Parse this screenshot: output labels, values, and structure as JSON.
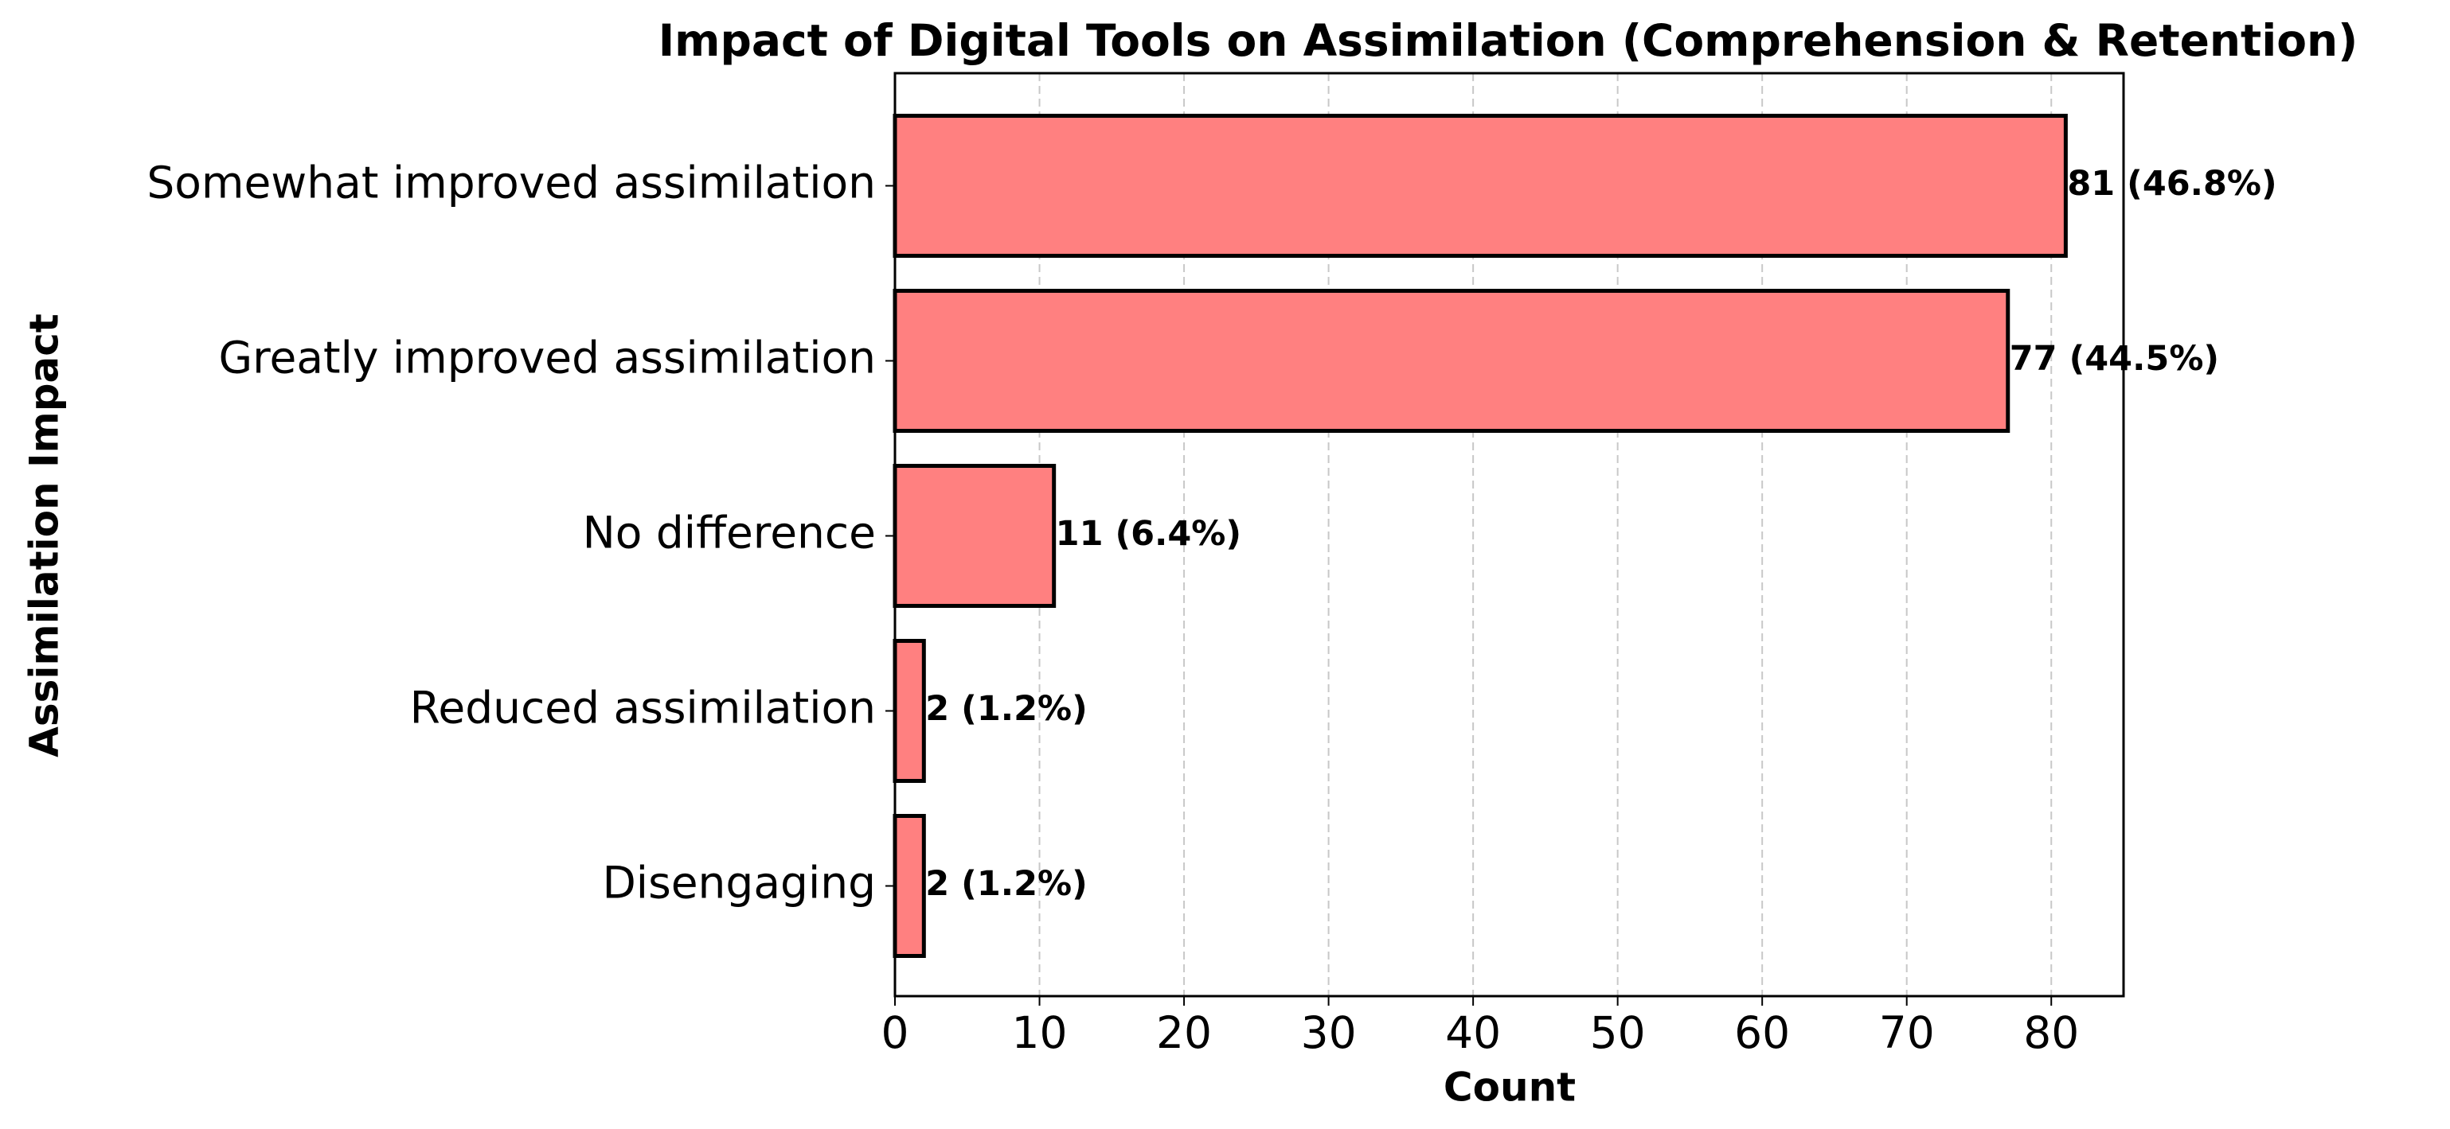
{
  "chart_data": {
    "type": "barh",
    "title": "Impact of Digital Tools on Assimilation (Comprehension & Retention)",
    "x_label": "Count",
    "y_label": "Assimilation Impact",
    "categories": [
      "Somewhat improved assimilation",
      "Greatly improved assimilation",
      "No difference",
      "Reduced assimilation",
      "Disengaging"
    ],
    "values": [
      81,
      77,
      11,
      2,
      2
    ],
    "value_labels": [
      "81 (46.8%)",
      "77 (44.5%)",
      "11 (6.4%)",
      "2 (1.2%)",
      "2 (1.2%)"
    ],
    "color": "#ff8080",
    "xlim": [
      0,
      85
    ],
    "xticks": [
      0,
      10,
      20,
      30,
      40,
      50,
      60,
      70,
      80
    ],
    "grid": true
  }
}
